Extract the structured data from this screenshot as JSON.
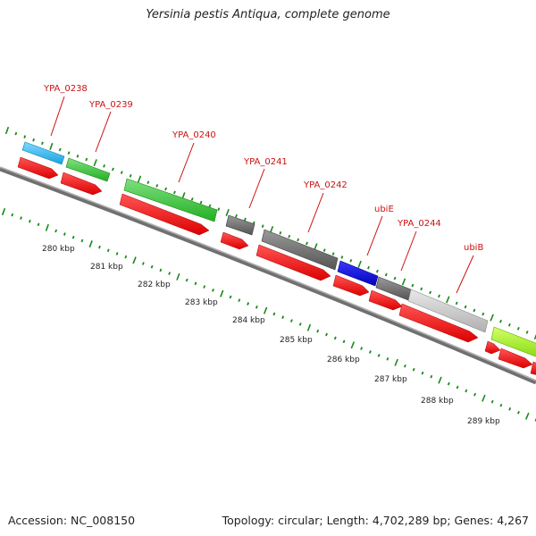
{
  "title": "Yersinia pestis Antiqua, complete genome",
  "accession_label": "Accession: NC_008150",
  "topology_label": "Topology: circular; Length: 4,702,289 bp; Genes: 4,267",
  "kbp_ticks": [
    {
      "label": "280 kbp"
    },
    {
      "label": "281 kbp"
    },
    {
      "label": "282 kbp"
    },
    {
      "label": "283 kbp"
    },
    {
      "label": "284 kbp"
    },
    {
      "label": "285 kbp"
    },
    {
      "label": "286 kbp"
    },
    {
      "label": "287 kbp"
    },
    {
      "label": "288 kbp"
    },
    {
      "label": "289 kbp"
    }
  ],
  "gene_labels": [
    "YPA_0238",
    "YPA_0239",
    "YPA_0240",
    "YPA_0241",
    "YPA_0242",
    "ubiE",
    "YPA_0244",
    "ubiB"
  ],
  "colors": {
    "cds": "#ee1111",
    "backbone": "#888888",
    "tick": "#1a8a1a",
    "label": "#cc1111"
  }
}
